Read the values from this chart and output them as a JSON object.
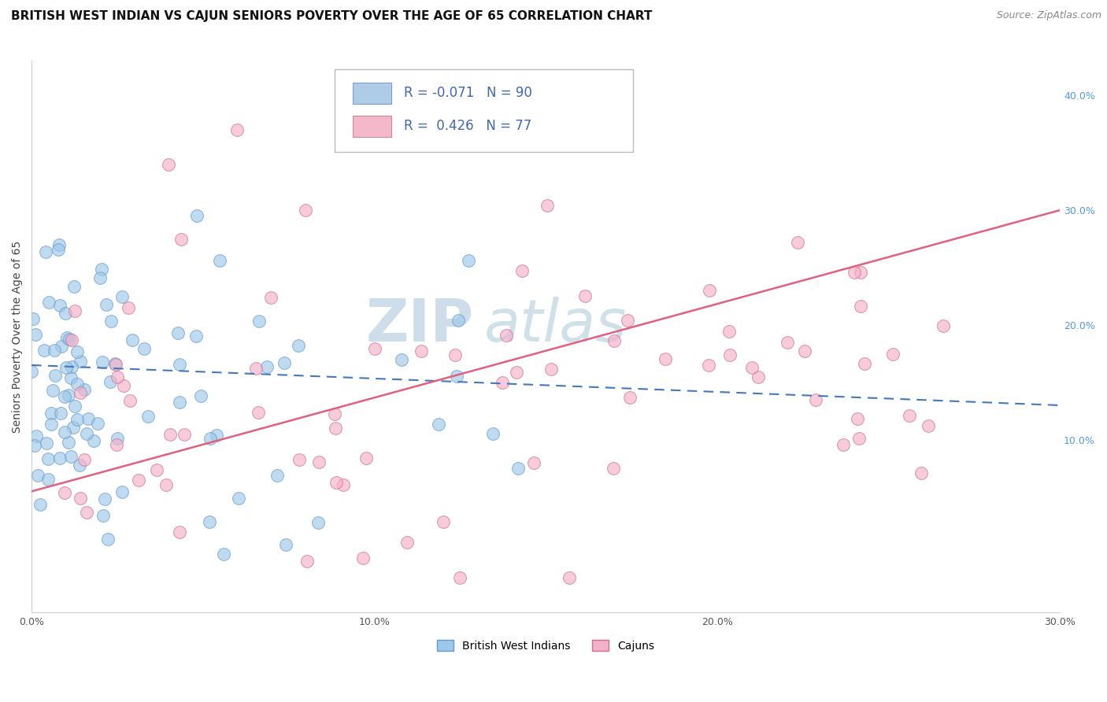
{
  "title": "BRITISH WEST INDIAN VS CAJUN SENIORS POVERTY OVER THE AGE OF 65 CORRELATION CHART",
  "source_text": "Source: ZipAtlas.com",
  "ylabel": "Seniors Poverty Over the Age of 65",
  "xlim": [
    0.0,
    0.3
  ],
  "ylim": [
    -0.05,
    0.43
  ],
  "xtick_labels": [
    "0.0%",
    "10.0%",
    "20.0%",
    "30.0%"
  ],
  "xtick_values": [
    0.0,
    0.1,
    0.2,
    0.3
  ],
  "ytick_labels_right": [
    "10.0%",
    "20.0%",
    "30.0%",
    "40.0%"
  ],
  "ytick_values_right": [
    0.1,
    0.2,
    0.3,
    0.4
  ],
  "series1_name": "British West Indians",
  "series1_color": "#9ec8e8",
  "series1_edge_color": "#6699cc",
  "series1_line_color": "#4477bb",
  "series1_line_style": "--",
  "series2_name": "Cajuns",
  "series2_color": "#f4b0c8",
  "series2_edge_color": "#cc7090",
  "series2_line_color": "#e06080",
  "series2_line_style": "-",
  "legend_sq1_color": "#aecce8",
  "legend_sq2_color": "#f4b8cb",
  "legend_text_color": "#4466aa",
  "watermark_zip_color": "#c0d5e8",
  "watermark_atlas_color": "#a8c8d8",
  "background_color": "#ffffff",
  "grid_color": "#dddddd",
  "title_fontsize": 11,
  "ylabel_fontsize": 10,
  "tick_fontsize": 9,
  "legend_fontsize": 12
}
